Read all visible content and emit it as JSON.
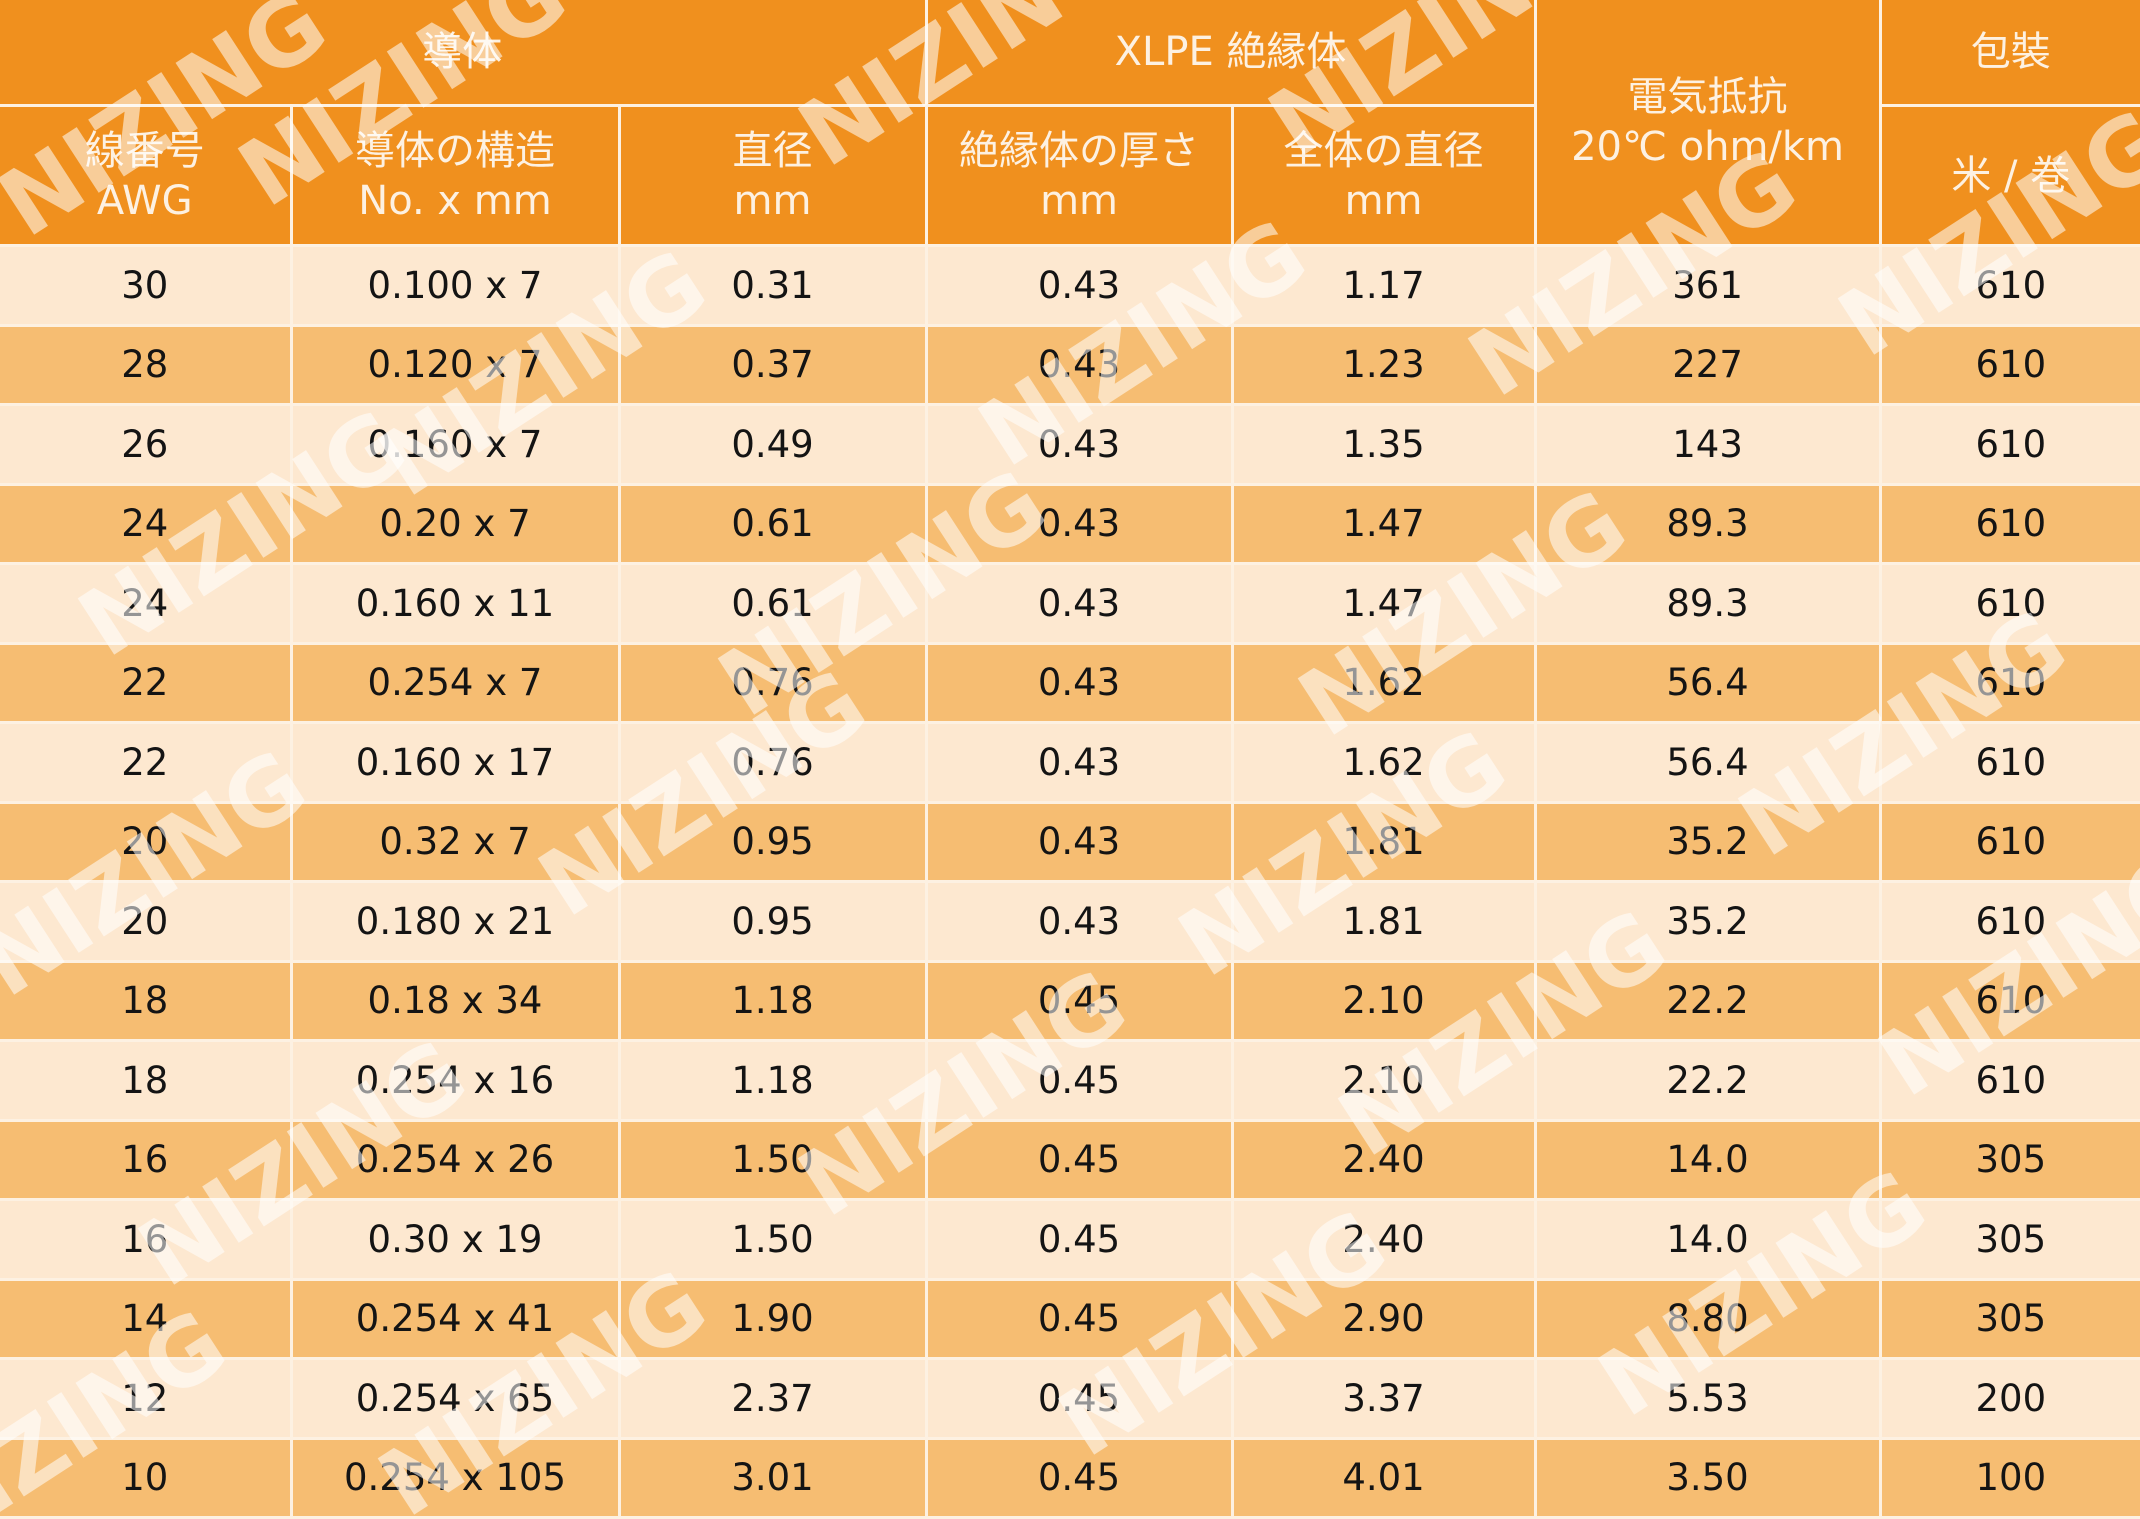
{
  "header": {
    "group_conductor": "導体",
    "group_insulation": "XLPE 絶縁体",
    "resistance_line1": "電気抵抗",
    "resistance_line2": "20℃ ohm/km",
    "group_packaging": "包裝",
    "awg_line1": "線番号",
    "awg_line2": "AWG",
    "structure_line1": "導体の構造",
    "structure_line2": "No. x mm",
    "diameter_line1": "直径",
    "diameter_line2": "mm",
    "thickness_line1": "絶縁体の厚さ",
    "thickness_line2": "mm",
    "overall_line1": "全体の直径",
    "overall_line2": "mm",
    "packaging_unit": "米 / 巻"
  },
  "rows": [
    [
      "30",
      "0.100 x 7",
      "0.31",
      "0.43",
      "1.17",
      "361",
      "610"
    ],
    [
      "28",
      "0.120 x 7",
      "0.37",
      "0.43",
      "1.23",
      "227",
      "610"
    ],
    [
      "26",
      "0.160 x 7",
      "0.49",
      "0.43",
      "1.35",
      "143",
      "610"
    ],
    [
      "24",
      "0.20 x 7",
      "0.61",
      "0.43",
      "1.47",
      "89.3",
      "610"
    ],
    [
      "24",
      "0.160 x 11",
      "0.61",
      "0.43",
      "1.47",
      "89.3",
      "610"
    ],
    [
      "22",
      "0.254 x 7",
      "0.76",
      "0.43",
      "1.62",
      "56.4",
      "610"
    ],
    [
      "22",
      "0.160 x 17",
      "0.76",
      "0.43",
      "1.62",
      "56.4",
      "610"
    ],
    [
      "20",
      "0.32 x 7",
      "0.95",
      "0.43",
      "1.81",
      "35.2",
      "610"
    ],
    [
      "20",
      "0.180 x 21",
      "0.95",
      "0.43",
      "1.81",
      "35.2",
      "610"
    ],
    [
      "18",
      "0.18 x 34",
      "1.18",
      "0.45",
      "2.10",
      "22.2",
      "610"
    ],
    [
      "18",
      "0.254 x 16",
      "1.18",
      "0.45",
      "2.10",
      "22.2",
      "610"
    ],
    [
      "16",
      "0.254 x 26",
      "1.50",
      "0.45",
      "2.40",
      "14.0",
      "305"
    ],
    [
      "16",
      "0.30 x 19",
      "1.50",
      "0.45",
      "2.40",
      "14.0",
      "305"
    ],
    [
      "14",
      "0.254 x 41",
      "1.90",
      "0.45",
      "2.90",
      "8.80",
      "305"
    ],
    [
      "12",
      "0.254 x 65",
      "2.37",
      "0.45",
      "3.37",
      "5.53",
      "200"
    ],
    [
      "10",
      "0.254 x 105",
      "3.01",
      "0.45",
      "4.01",
      "3.50",
      "100"
    ]
  ],
  "watermark": "NIZING",
  "colors": {
    "header_orange": "#f0901e",
    "row_light": "#fde8d0",
    "row_dark": "#f6bd72",
    "header_text": "#fdf1e2"
  }
}
